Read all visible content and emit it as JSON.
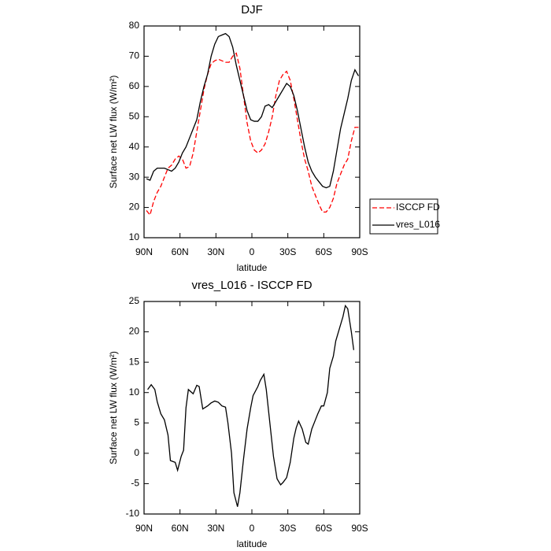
{
  "chart_data": [
    {
      "type": "line",
      "title": "DJF",
      "x_label": "latitude",
      "y_label": "Surface net LW flux (W/m²)",
      "x": [
        88,
        85,
        82,
        79,
        76,
        73,
        70,
        67,
        64,
        61,
        58,
        55,
        52,
        49,
        46,
        43,
        40,
        37,
        34,
        31,
        28,
        25,
        22,
        19,
        16,
        13,
        10,
        7,
        4,
        1,
        -2,
        -5,
        -8,
        -11,
        -14,
        -17,
        -20,
        -23,
        -26,
        -29,
        -32,
        -35,
        -38,
        -41,
        -44,
        -47,
        -50,
        -53,
        -56,
        -59,
        -62,
        -65,
        -68,
        -71,
        -74,
        -77,
        -80,
        -83,
        -86,
        -89
      ],
      "series": [
        {
          "name": "ISCCP FD",
          "color": "#ff0000",
          "dashed": true,
          "values": [
            19,
            17.5,
            22,
            25,
            27,
            30,
            33,
            34,
            36,
            37,
            36,
            33,
            33.5,
            38,
            45,
            52,
            59,
            64,
            67.5,
            68.5,
            69,
            68.5,
            68,
            68,
            70,
            71,
            66,
            57,
            48,
            42,
            39,
            38,
            39,
            41,
            45,
            50,
            57,
            62,
            64,
            65,
            62,
            56,
            49,
            42,
            36,
            32,
            27,
            24,
            21,
            18.5,
            18.5,
            20,
            23,
            28,
            31,
            34,
            36,
            42,
            46.5,
            46.5
          ]
        },
        {
          "name": "vres_L016",
          "color": "#000000",
          "dashed": false,
          "values": [
            29.5,
            29,
            32,
            33,
            33,
            33,
            32.5,
            32,
            33,
            35,
            38,
            40,
            43,
            46,
            49,
            55,
            60,
            64,
            70,
            74,
            76.5,
            77,
            77.5,
            76.5,
            73,
            67,
            62,
            57,
            52,
            49,
            48.5,
            48.5,
            50,
            53.5,
            54,
            53,
            55,
            57,
            59,
            61,
            60,
            57,
            52,
            46,
            40,
            35,
            32,
            30,
            28.5,
            27,
            26.5,
            27,
            32,
            39,
            46,
            51,
            56,
            62,
            65.5,
            63.5
          ]
        }
      ],
      "xlim": [
        90,
        -90
      ],
      "xticks": [
        {
          "value": 90,
          "label": "90N"
        },
        {
          "value": 60,
          "label": "60N"
        },
        {
          "value": 30,
          "label": "30N"
        },
        0,
        {
          "value": -30,
          "label": "30S"
        },
        {
          "value": -60,
          "label": "60S"
        },
        {
          "value": -90,
          "label": "90S"
        }
      ],
      "ylim": [
        10,
        80
      ],
      "yticks": [
        10,
        20,
        30,
        40,
        50,
        60,
        70,
        80
      ],
      "legend": "outside-right"
    },
    {
      "type": "line",
      "title": "vres_L016 - ISCCP FD",
      "x_label": "latitude",
      "y_label": "Surface net LW flux (W/m²)",
      "x": [
        87,
        84,
        81,
        79,
        76,
        73,
        70,
        68,
        64,
        62,
        59,
        57,
        55,
        53,
        49,
        46,
        44,
        41,
        37,
        34,
        31,
        28,
        25,
        22,
        20,
        17,
        15,
        12,
        10,
        7,
        4,
        1,
        -1,
        -5,
        -7,
        -10,
        -12,
        -15,
        -18,
        -21,
        -24,
        -26,
        -29,
        -32,
        -35,
        -37,
        -39,
        -42,
        -45,
        -47,
        -50,
        -53,
        -55,
        -58,
        -60,
        -63,
        -65,
        -68,
        -70,
        -73,
        -76,
        -78,
        -80,
        -83,
        -85
      ],
      "series": [
        {
          "color": "#000000",
          "dashed": false,
          "values": [
            10.5,
            11.3,
            10.5,
            8.5,
            6.5,
            5.5,
            3,
            -1.2,
            -1.5,
            -2.8,
            -0.5,
            0.5,
            7.5,
            10.5,
            9.8,
            11.2,
            11,
            7.3,
            7.8,
            8.3,
            8.6,
            8.4,
            7.8,
            7.6,
            5,
            0,
            -6.5,
            -8.8,
            -6.5,
            -1,
            4,
            7.5,
            9.5,
            11,
            12,
            13,
            10.5,
            5,
            -0.5,
            -4.2,
            -5.2,
            -4.8,
            -4,
            -1.5,
            2.5,
            4.2,
            5.3,
            4,
            1.8,
            1.5,
            4,
            5.5,
            6.5,
            7.8,
            7.8,
            10,
            14,
            16,
            18.5,
            20.5,
            22.5,
            24.3,
            23.8,
            20,
            17
          ]
        }
      ],
      "xlim": [
        90,
        -90
      ],
      "xticks": [
        {
          "value": 90,
          "label": "90N"
        },
        {
          "value": 60,
          "label": "60N"
        },
        {
          "value": 30,
          "label": "30N"
        },
        0,
        {
          "value": -30,
          "label": "30S"
        },
        {
          "value": -60,
          "label": "60S"
        },
        {
          "value": -90,
          "label": "90S"
        }
      ],
      "ylim": [
        -10,
        25
      ],
      "yticks": [
        -10,
        -5,
        0,
        5,
        10,
        15,
        20,
        25
      ]
    }
  ]
}
